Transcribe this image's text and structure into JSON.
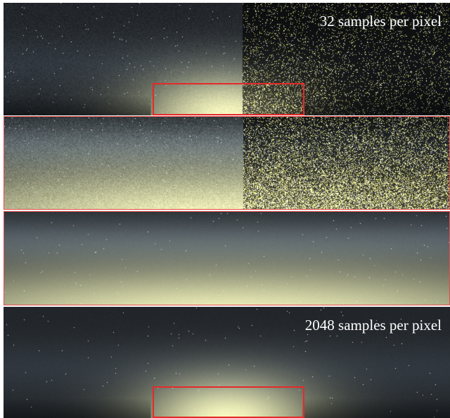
{
  "panels": {
    "top": {
      "caption": "32 samples per pixel"
    },
    "bottom": {
      "caption": "2048 samples per pixel"
    }
  },
  "colors": {
    "sky": "#23272b",
    "glow": "#f6f6c8",
    "highlight_box": "#e52a2a",
    "zoom_border": "#e34b4b"
  }
}
